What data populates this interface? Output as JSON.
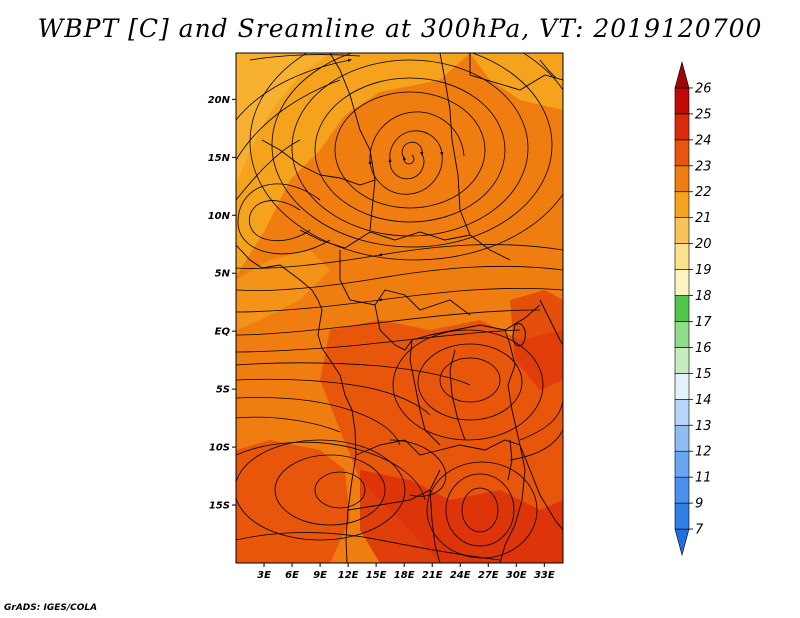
{
  "title": "WBPT [C] and Sreamline at 300hPa, VT: 2019120700",
  "credit": "GrADS: IGES/COLA",
  "map": {
    "lon_range": [
      0,
      35
    ],
    "lat_range": [
      -20,
      24
    ],
    "lat_ticks": [
      {
        "value": 20,
        "label": "20N"
      },
      {
        "value": 15,
        "label": "15N"
      },
      {
        "value": 10,
        "label": "10N"
      },
      {
        "value": 5,
        "label": "5N"
      },
      {
        "value": 0,
        "label": "EQ"
      },
      {
        "value": -5,
        "label": "5S"
      },
      {
        "value": -10,
        "label": "10S"
      },
      {
        "value": -15,
        "label": "15S"
      }
    ],
    "lon_ticks": [
      {
        "value": 3,
        "label": "3E"
      },
      {
        "value": 6,
        "label": "6E"
      },
      {
        "value": 9,
        "label": "9E"
      },
      {
        "value": 12,
        "label": "12E"
      },
      {
        "value": 15,
        "label": "15E"
      },
      {
        "value": 18,
        "label": "18E"
      },
      {
        "value": 21,
        "label": "21E"
      },
      {
        "value": 24,
        "label": "24E"
      },
      {
        "value": 27,
        "label": "27E"
      },
      {
        "value": 30,
        "label": "30E"
      },
      {
        "value": 33,
        "label": "33E"
      }
    ]
  },
  "colorbar": {
    "levels": [
      "7",
      "9",
      "11",
      "12",
      "13",
      "14",
      "15",
      "16",
      "17",
      "18",
      "19",
      "20",
      "21",
      "22",
      "23",
      "24",
      "25",
      "26"
    ],
    "colors": [
      "#1f6fe0",
      "#2f7fe8",
      "#4a91ee",
      "#68a6f2",
      "#8fbcf5",
      "#b6d5f8",
      "#e2f2fb",
      "#c4ecc0",
      "#8edc88",
      "#52c64a",
      "#fbf4c0",
      "#fbe28e",
      "#f8c458",
      "#f5a21c",
      "#f07d10",
      "#e8560c",
      "#db2a0a",
      "#c00a08",
      "#a00606"
    ]
  },
  "fill_colors": {
    "yellow_orange": "#f8b030",
    "orange": "#f5a21c",
    "dark_orange": "#f07d10",
    "red_orange": "#e8560c",
    "red": "#db2a0a"
  }
}
